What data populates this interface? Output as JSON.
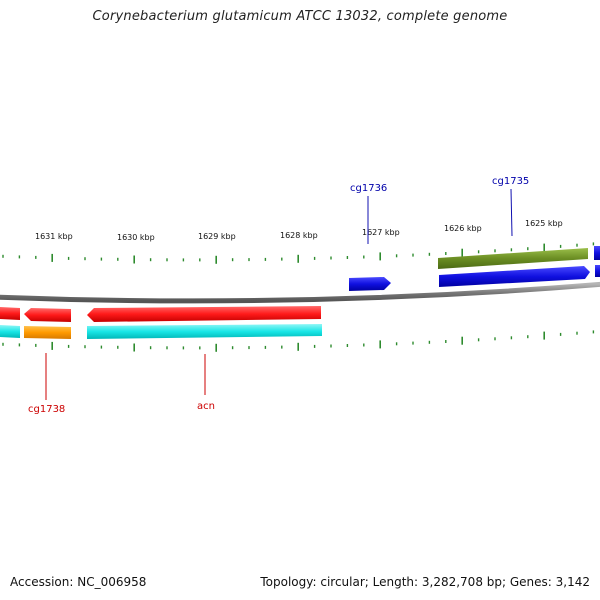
{
  "title": "Corynebacterium glutamicum ATCC 13032, complete genome",
  "footer": {
    "accession_label": "Accession:",
    "accession": "NC_006958",
    "topology_text": "Topology: circular; Length: 3,282,708 bp; Genes: 3,142"
  },
  "colors": {
    "backbone": "#888888",
    "tick": "#2e8b2e",
    "red": "#ff1a1a",
    "blue": "#1010e0",
    "olive": "#6b8e23",
    "orange": "#ff9a00",
    "cyan": "#19e6e6",
    "label_red": "#cc0000",
    "label_blue": "#0000aa"
  },
  "scale": {
    "unit": "kbp",
    "labels": [
      "1631 kbp",
      "1630 kbp",
      "1629 kbp",
      "1628 kbp",
      "1627 kbp",
      "1626 kbp",
      "1625 kbp"
    ]
  },
  "gene_labels": [
    {
      "text": "cg1736",
      "color": "blue"
    },
    {
      "text": "cg1735",
      "color": "blue"
    },
    {
      "text": "cg1738",
      "color": "red"
    },
    {
      "text": "acn",
      "color": "red"
    }
  ]
}
